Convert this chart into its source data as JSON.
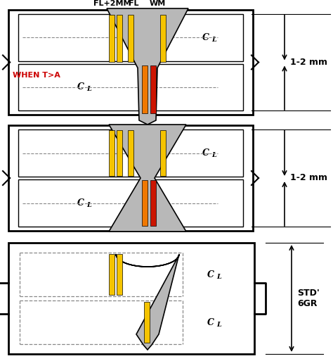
{
  "bg_color": "#ffffff",
  "gray_weld": "#b8b8b8",
  "yellow_color": "#f5c400",
  "orange_color": "#f07800",
  "red_color": "#cc1500",
  "black": "#000000",
  "red_text": "#cc0000",
  "label_FL2MM": "FL+2MM",
  "label_FL": "FL",
  "label_WM": "WM",
  "label_when": "WHEN T>A",
  "label_dim1": "1-2 mm",
  "label_std": "STD'\n6GR",
  "fig_w": 4.74,
  "fig_h": 5.13,
  "dpi": 100
}
